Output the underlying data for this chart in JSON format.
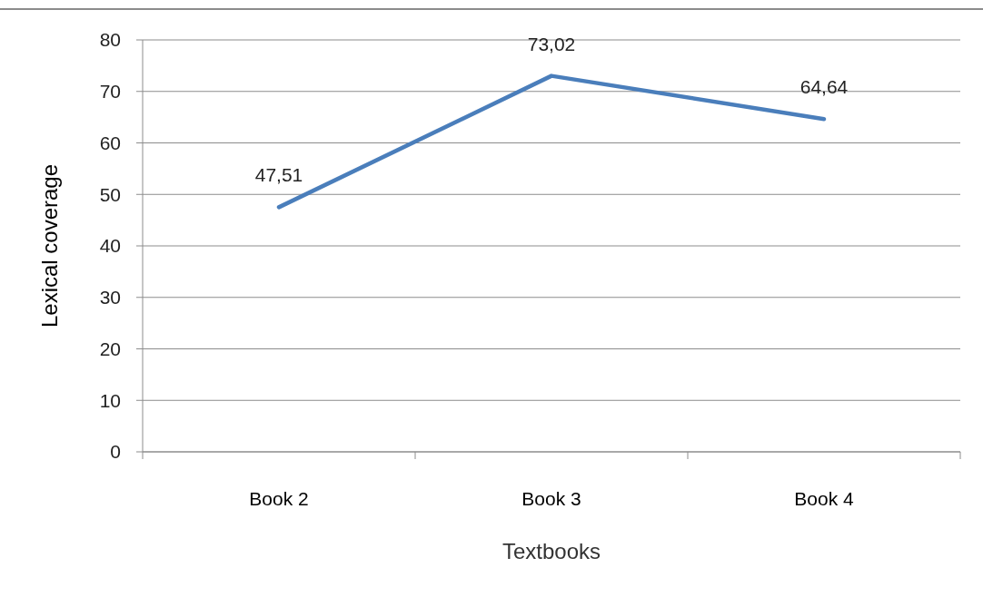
{
  "chart_data": {
    "type": "line",
    "xlabel": "Textbooks",
    "ylabel": "Lexical coverage",
    "categories": [
      "Book 2",
      "Book 3",
      "Book 4"
    ],
    "series": [
      {
        "color": "#4a7ebb",
        "values": [
          47.51,
          73.02,
          64.64
        ],
        "value_labels": [
          "47,51",
          "73,02",
          "64,64"
        ]
      }
    ],
    "ylim": [
      0,
      80
    ],
    "yticks": [
      0,
      10,
      20,
      30,
      40,
      50,
      60,
      70,
      80
    ],
    "grid": "y",
    "marker": "none",
    "line_style": "solid"
  }
}
